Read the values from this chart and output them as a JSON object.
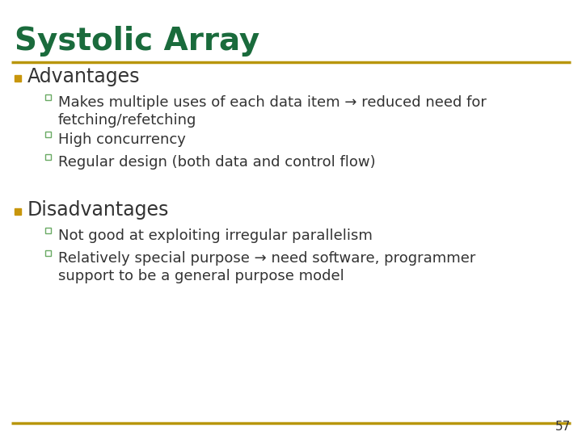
{
  "title": "Systolic Array",
  "title_color": "#1a6b3c",
  "title_fontsize": 28,
  "background_color": "#ffffff",
  "separator_color": "#b8960c",
  "slide_number": "57",
  "main_bullet_color": "#c8960c",
  "sub_bullet_color": "#6aaa64",
  "text_color": "#333333",
  "heading_fontsize": 17,
  "item_fontsize": 13,
  "sections": [
    {
      "heading": "Advantages",
      "items": [
        "Makes multiple uses of each data item → reduced need for\nfetching/refetching",
        "High concurrency",
        "Regular design (both data and control flow)"
      ]
    },
    {
      "heading": "Disadvantages",
      "items": [
        "Not good at exploiting irregular parallelism",
        "Relatively special purpose → need software, programmer\nsupport to be a general purpose model"
      ]
    }
  ]
}
